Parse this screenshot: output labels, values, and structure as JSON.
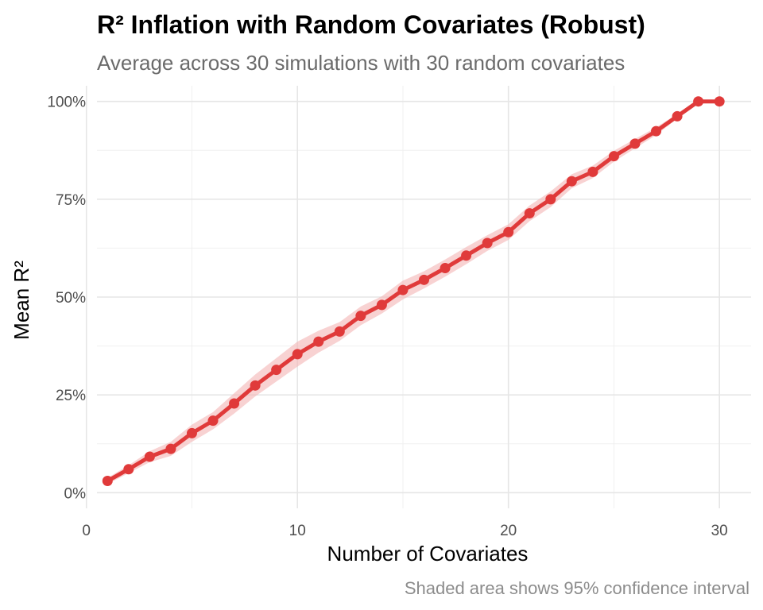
{
  "chart_data": {
    "type": "line",
    "title": "R² Inflation with Random Covariates (Robust)",
    "subtitle": "Average across 30 simulations with 30 random covariates",
    "caption": "Shaded area shows 95% confidence interval",
    "xlabel": "Number of Covariates",
    "ylabel": "Mean R²",
    "xlim": [
      0.5,
      31.5
    ],
    "ylim": [
      -0.04,
      1.04
    ],
    "x_ticks": [
      0,
      10,
      20,
      30
    ],
    "y_ticks": [
      0,
      0.25,
      0.5,
      0.75,
      1.0
    ],
    "y_tick_labels": [
      "0%",
      "25%",
      "50%",
      "75%",
      "100%"
    ],
    "x_tick_labels": [
      "0",
      "10",
      "20",
      "30"
    ],
    "grid": true,
    "legend": "none",
    "line_color": "#e03a3a",
    "ribbon_color": "#f4b4b4",
    "x": [
      1,
      2,
      3,
      4,
      5,
      6,
      7,
      8,
      9,
      10,
      11,
      12,
      13,
      14,
      15,
      16,
      17,
      18,
      19,
      20,
      21,
      22,
      23,
      24,
      25,
      26,
      27,
      28,
      29,
      30
    ],
    "y": [
      0.03,
      0.06,
      0.092,
      0.112,
      0.152,
      0.184,
      0.228,
      0.274,
      0.314,
      0.354,
      0.386,
      0.412,
      0.452,
      0.48,
      0.518,
      0.544,
      0.574,
      0.606,
      0.638,
      0.666,
      0.714,
      0.75,
      0.796,
      0.82,
      0.86,
      0.892,
      0.924,
      0.962,
      1.0,
      1.0
    ],
    "ci_lower": [
      0.022,
      0.05,
      0.078,
      0.094,
      0.13,
      0.162,
      0.202,
      0.246,
      0.284,
      0.322,
      0.358,
      0.388,
      0.428,
      0.458,
      0.494,
      0.522,
      0.552,
      0.584,
      0.618,
      0.646,
      0.694,
      0.73,
      0.778,
      0.804,
      0.846,
      0.88,
      0.914,
      0.956,
      1.0,
      1.0
    ],
    "ci_upper": [
      0.038,
      0.07,
      0.106,
      0.13,
      0.174,
      0.206,
      0.254,
      0.302,
      0.344,
      0.386,
      0.414,
      0.436,
      0.476,
      0.502,
      0.542,
      0.566,
      0.596,
      0.628,
      0.658,
      0.686,
      0.734,
      0.77,
      0.814,
      0.836,
      0.874,
      0.904,
      0.934,
      0.968,
      1.0,
      1.0
    ]
  }
}
